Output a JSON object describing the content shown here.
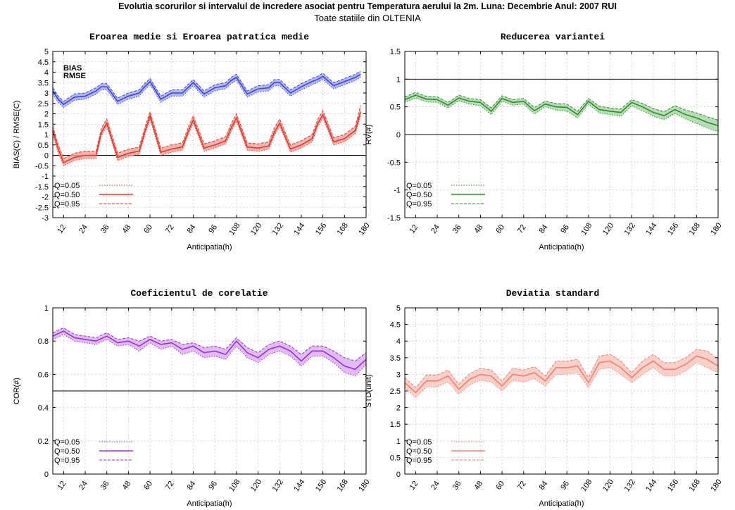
{
  "suptitle": "Evolutia scorurilor si intervalul de incredere asociat pentru Temperatura aerului la 2m. Luna: Decembrie Anul: 2007 RUI",
  "subtitle": "Toate statiile din OLTENIA",
  "chart_data": [
    {
      "type": "line",
      "title": "Eroarea medie si Eroarea patratica medie",
      "xlabel": "Anticipatia(h)",
      "ylabel": "BIAS(C) / RMSE(C)",
      "ylim": [
        -3,
        5
      ],
      "yticks": [
        -3,
        -2.5,
        -2,
        -1.5,
        -1,
        -0.5,
        0,
        0.5,
        1,
        1.5,
        2,
        2.5,
        3,
        3.5,
        4,
        4.5,
        5
      ],
      "ytick_labels": [
        "-3",
        "-2.5",
        "-2",
        "-1.5",
        "-1",
        "-0.5",
        "0",
        "0.5",
        "1",
        "1.5",
        "2",
        "2.5",
        "3",
        "3.5",
        "4",
        "4.5",
        "5"
      ],
      "xticks": [
        12,
        24,
        36,
        48,
        60,
        72,
        84,
        96,
        108,
        120,
        132,
        144,
        156,
        168,
        180
      ],
      "xtick_labels": [
        "12",
        "24",
        "36",
        "48",
        "60",
        "72",
        "84",
        "96",
        "108",
        "120",
        "132",
        "144",
        "156",
        "168",
        "180"
      ],
      "xlim": [
        6,
        180
      ],
      "reference_line": 0,
      "grid": true,
      "text_labels": [
        "BIAS",
        "RMSE"
      ],
      "legend_labels": [
        "Q=0.05",
        "Q=0.50",
        "Q=0.95"
      ],
      "legend_position": "bottom-left",
      "x": [
        6,
        9,
        12,
        18,
        24,
        30,
        33,
        36,
        42,
        48,
        54,
        57,
        60,
        66,
        72,
        78,
        81,
        84,
        90,
        96,
        102,
        105,
        108,
        114,
        120,
        126,
        129,
        132,
        138,
        144,
        150,
        153,
        156,
        162,
        168,
        174,
        177
      ],
      "series": [
        {
          "name": "BIAS",
          "color": "#e8372a",
          "band": "#f4a6a0",
          "q50": [
            1.2,
            0.3,
            -0.35,
            -0.1,
            0.0,
            0.0,
            1.1,
            1.55,
            -0.1,
            0.1,
            0.2,
            1.1,
            1.9,
            0.15,
            0.3,
            0.4,
            1.1,
            1.7,
            0.35,
            0.5,
            0.7,
            1.3,
            1.8,
            0.4,
            0.35,
            0.45,
            1.1,
            1.55,
            0.3,
            0.5,
            0.8,
            1.5,
            1.95,
            0.65,
            0.8,
            1.2,
            2.1
          ],
          "q05": [
            1.0,
            0.1,
            -0.5,
            -0.25,
            -0.15,
            -0.15,
            0.95,
            1.4,
            -0.25,
            -0.05,
            0.05,
            0.95,
            1.75,
            0.0,
            0.15,
            0.25,
            0.95,
            1.55,
            0.2,
            0.35,
            0.55,
            1.15,
            1.65,
            0.25,
            0.2,
            0.3,
            0.95,
            1.4,
            0.15,
            0.35,
            0.65,
            1.35,
            1.8,
            0.5,
            0.65,
            1.05,
            1.9
          ],
          "q95": [
            1.4,
            0.5,
            -0.15,
            0.1,
            0.2,
            0.2,
            1.3,
            1.75,
            0.1,
            0.3,
            0.4,
            1.3,
            2.1,
            0.35,
            0.5,
            0.6,
            1.3,
            1.9,
            0.55,
            0.7,
            0.9,
            1.5,
            2.0,
            0.6,
            0.55,
            0.65,
            1.3,
            1.75,
            0.5,
            0.7,
            1.0,
            1.7,
            2.15,
            0.85,
            1.0,
            1.4,
            2.4
          ]
        },
        {
          "name": "RMSE",
          "color": "#3a44e8",
          "band": "#a6abf5",
          "q50": [
            3.1,
            2.7,
            2.45,
            2.8,
            2.85,
            3.1,
            3.3,
            3.3,
            2.6,
            2.85,
            3.0,
            3.3,
            3.55,
            2.7,
            3.0,
            3.0,
            3.25,
            3.5,
            2.95,
            3.25,
            3.35,
            3.6,
            3.75,
            2.95,
            3.2,
            3.25,
            3.5,
            3.5,
            3.0,
            3.3,
            3.55,
            3.65,
            3.8,
            3.35,
            3.55,
            3.75,
            3.9
          ],
          "q05": [
            2.95,
            2.55,
            2.3,
            2.65,
            2.7,
            2.95,
            3.15,
            3.15,
            2.45,
            2.7,
            2.85,
            3.15,
            3.4,
            2.55,
            2.85,
            2.85,
            3.1,
            3.35,
            2.8,
            3.1,
            3.2,
            3.45,
            3.6,
            2.8,
            3.05,
            3.1,
            3.35,
            3.35,
            2.85,
            3.15,
            3.4,
            3.5,
            3.65,
            3.2,
            3.4,
            3.6,
            3.75
          ],
          "q95": [
            3.25,
            2.85,
            2.6,
            2.95,
            3.0,
            3.25,
            3.45,
            3.45,
            2.75,
            3.0,
            3.15,
            3.45,
            3.7,
            2.85,
            3.15,
            3.15,
            3.4,
            3.65,
            3.1,
            3.4,
            3.5,
            3.75,
            3.9,
            3.1,
            3.35,
            3.4,
            3.65,
            3.65,
            3.15,
            3.45,
            3.7,
            3.8,
            3.95,
            3.5,
            3.7,
            3.9,
            4.05
          ]
        }
      ]
    },
    {
      "type": "line",
      "title": "Reducerea variantei",
      "xlabel": "Anticipatia(h)",
      "ylabel": "RV(#)",
      "ylim": [
        -1.5,
        1.5
      ],
      "yticks": [
        -1.5,
        -1,
        -0.5,
        0,
        0.5,
        1,
        1.5
      ],
      "ytick_labels": [
        "-1.5",
        "-1",
        "-0.5",
        "0",
        "0.5",
        "1",
        "1.5"
      ],
      "xticks": [
        12,
        24,
        36,
        48,
        60,
        72,
        84,
        96,
        108,
        120,
        132,
        144,
        156,
        168,
        180
      ],
      "xtick_labels": [
        "12",
        "24",
        "36",
        "48",
        "60",
        "72",
        "84",
        "96",
        "108",
        "120",
        "132",
        "144",
        "156",
        "168",
        "180"
      ],
      "xlim": [
        6,
        180
      ],
      "reference_lines": [
        0,
        1
      ],
      "grid": true,
      "legend_labels": [
        "Q=0.05",
        "Q=0.50",
        "Q=0.95"
      ],
      "legend_position": "bottom-left",
      "x": [
        6,
        12,
        18,
        24,
        30,
        36,
        42,
        48,
        54,
        60,
        66,
        72,
        78,
        84,
        90,
        96,
        102,
        108,
        114,
        120,
        126,
        132,
        138,
        144,
        150,
        156,
        162,
        168,
        174,
        180
      ],
      "series": [
        {
          "name": "RV",
          "color": "#2e8b2e",
          "band": "#a8d8a8",
          "q50": [
            0.63,
            0.71,
            0.64,
            0.63,
            0.53,
            0.66,
            0.6,
            0.58,
            0.42,
            0.65,
            0.58,
            0.6,
            0.43,
            0.55,
            0.5,
            0.49,
            0.36,
            0.6,
            0.45,
            0.42,
            0.4,
            0.58,
            0.5,
            0.4,
            0.34,
            0.45,
            0.36,
            0.3,
            0.22,
            0.16
          ],
          "q05": [
            0.58,
            0.66,
            0.59,
            0.58,
            0.48,
            0.61,
            0.55,
            0.52,
            0.36,
            0.6,
            0.53,
            0.55,
            0.37,
            0.5,
            0.44,
            0.42,
            0.3,
            0.55,
            0.39,
            0.36,
            0.33,
            0.52,
            0.43,
            0.33,
            0.27,
            0.38,
            0.28,
            0.2,
            0.12,
            0.05
          ],
          "q95": [
            0.68,
            0.76,
            0.69,
            0.68,
            0.58,
            0.71,
            0.65,
            0.63,
            0.48,
            0.7,
            0.63,
            0.65,
            0.49,
            0.6,
            0.56,
            0.55,
            0.42,
            0.65,
            0.51,
            0.48,
            0.46,
            0.63,
            0.56,
            0.47,
            0.41,
            0.52,
            0.44,
            0.39,
            0.32,
            0.26
          ]
        }
      ]
    },
    {
      "type": "line",
      "title": "Coeficientul de corelatie",
      "xlabel": "Anticipatia(h)",
      "ylabel": "COR(#)",
      "ylim": [
        0,
        1
      ],
      "yticks": [
        0,
        0.2,
        0.4,
        0.6,
        0.8,
        1
      ],
      "ytick_labels": [
        "0",
        "0.2",
        "0.4",
        "0.6",
        "0.8",
        "1"
      ],
      "xticks": [
        12,
        24,
        36,
        48,
        60,
        72,
        84,
        96,
        108,
        120,
        132,
        144,
        156,
        168,
        180
      ],
      "xtick_labels": [
        "12",
        "24",
        "36",
        "48",
        "60",
        "72",
        "84",
        "96",
        "108",
        "120",
        "132",
        "144",
        "156",
        "168",
        "180"
      ],
      "xlim": [
        6,
        180
      ],
      "reference_line": 0.5,
      "grid": true,
      "legend_labels": [
        "Q=0.05",
        "Q=0.50",
        "Q=0.95"
      ],
      "legend_position": "bottom-left",
      "x": [
        6,
        12,
        18,
        24,
        30,
        36,
        42,
        48,
        54,
        60,
        66,
        72,
        78,
        84,
        90,
        96,
        102,
        108,
        114,
        120,
        126,
        132,
        138,
        144,
        150,
        156,
        162,
        168,
        174,
        180
      ],
      "series": [
        {
          "name": "COR",
          "color": "#9b30d9",
          "band": "#dcb0f2",
          "q50": [
            0.83,
            0.86,
            0.82,
            0.81,
            0.8,
            0.83,
            0.79,
            0.8,
            0.77,
            0.81,
            0.78,
            0.79,
            0.75,
            0.77,
            0.73,
            0.74,
            0.72,
            0.8,
            0.73,
            0.7,
            0.75,
            0.77,
            0.74,
            0.68,
            0.74,
            0.74,
            0.7,
            0.65,
            0.63,
            0.69
          ],
          "q05": [
            0.81,
            0.84,
            0.8,
            0.79,
            0.78,
            0.81,
            0.77,
            0.78,
            0.74,
            0.79,
            0.75,
            0.77,
            0.72,
            0.74,
            0.7,
            0.71,
            0.69,
            0.77,
            0.7,
            0.67,
            0.72,
            0.74,
            0.71,
            0.65,
            0.71,
            0.71,
            0.67,
            0.61,
            0.59,
            0.66
          ],
          "q95": [
            0.85,
            0.88,
            0.84,
            0.83,
            0.82,
            0.85,
            0.81,
            0.82,
            0.8,
            0.83,
            0.8,
            0.81,
            0.78,
            0.79,
            0.76,
            0.77,
            0.75,
            0.82,
            0.76,
            0.73,
            0.78,
            0.8,
            0.77,
            0.72,
            0.77,
            0.77,
            0.74,
            0.7,
            0.68,
            0.73
          ]
        }
      ]
    },
    {
      "type": "line",
      "title": "Deviatia standard",
      "xlabel": "Anticipatia(h)",
      "ylabel": "STD(unit)",
      "ylim": [
        0,
        5
      ],
      "yticks": [
        0,
        0.5,
        1,
        1.5,
        2,
        2.5,
        3,
        3.5,
        4,
        4.5,
        5
      ],
      "ytick_labels": [
        "0",
        "0.5",
        "1",
        "1.5",
        "2",
        "2.5",
        "3",
        "3.5",
        "4",
        "4.5",
        "5"
      ],
      "xticks": [
        12,
        24,
        36,
        48,
        60,
        72,
        84,
        96,
        108,
        120,
        132,
        144,
        156,
        168,
        180
      ],
      "xtick_labels": [
        "12",
        "24",
        "36",
        "48",
        "60",
        "72",
        "84",
        "96",
        "108",
        "120",
        "132",
        "144",
        "156",
        "168",
        "180"
      ],
      "xlim": [
        6,
        180
      ],
      "grid": true,
      "legend_labels": [
        "Q=0.05",
        "Q=0.50",
        "Q=0.95"
      ],
      "legend_position": "bottom-left",
      "x": [
        6,
        12,
        18,
        24,
        30,
        36,
        42,
        48,
        54,
        60,
        66,
        72,
        78,
        84,
        90,
        96,
        102,
        108,
        114,
        120,
        126,
        132,
        138,
        144,
        150,
        156,
        162,
        168,
        174,
        180
      ],
      "series": [
        {
          "name": "STD",
          "color": "#f08070",
          "band": "#f9c8be",
          "q50": [
            2.75,
            2.45,
            2.8,
            2.8,
            2.95,
            2.55,
            2.85,
            3.0,
            2.95,
            2.65,
            3.0,
            2.95,
            3.05,
            2.8,
            3.2,
            3.2,
            3.25,
            2.75,
            3.35,
            3.4,
            3.2,
            2.9,
            3.2,
            3.4,
            3.15,
            3.15,
            3.3,
            3.55,
            3.45,
            3.25
          ],
          "q05": [
            2.6,
            2.3,
            2.62,
            2.62,
            2.77,
            2.4,
            2.68,
            2.82,
            2.77,
            2.5,
            2.82,
            2.77,
            2.87,
            2.65,
            3.0,
            3.0,
            3.05,
            2.6,
            3.15,
            3.2,
            3.0,
            2.75,
            3.0,
            3.2,
            2.95,
            2.95,
            3.1,
            3.35,
            3.2,
            3.05
          ],
          "q95": [
            2.9,
            2.6,
            2.98,
            2.98,
            3.13,
            2.7,
            3.02,
            3.18,
            3.13,
            2.8,
            3.18,
            3.13,
            3.23,
            2.95,
            3.4,
            3.4,
            3.45,
            2.9,
            3.55,
            3.6,
            3.4,
            3.05,
            3.4,
            3.6,
            3.35,
            3.35,
            3.5,
            3.75,
            3.7,
            3.45
          ]
        }
      ]
    }
  ]
}
